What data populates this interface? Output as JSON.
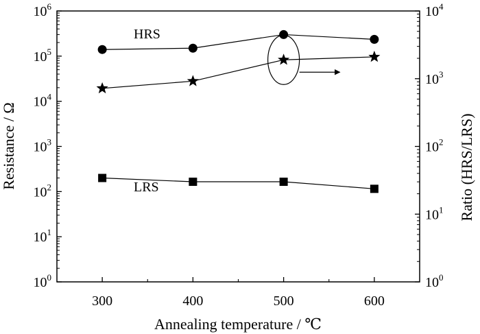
{
  "chart_data": {
    "type": "line",
    "x_label": "Annealing temperature / ℃",
    "y_label_left": "Resistance / Ω",
    "y_label_right": "Ratio (HRS/LRS)",
    "x_ticks": [
      300,
      400,
      500,
      600
    ],
    "x_range": [
      250,
      650
    ],
    "y_left_scale": "log",
    "y_left_range": [
      1,
      1000000
    ],
    "y_left_ticks": [
      "10^0",
      "10^1",
      "10^2",
      "10^3",
      "10^4",
      "10^5",
      "10^6"
    ],
    "y_right_scale": "log",
    "y_right_range": [
      1,
      10000
    ],
    "y_right_ticks": [
      "10^0",
      "10^1",
      "10^2",
      "10^3",
      "10^4"
    ],
    "grid": false,
    "series": [
      {
        "name": "HRS",
        "axis": "left",
        "marker": "circle",
        "x": [
          300,
          400,
          500,
          600
        ],
        "y": [
          140000,
          150000,
          300000,
          235000
        ]
      },
      {
        "name": "LRS",
        "axis": "left",
        "marker": "square",
        "x": [
          300,
          400,
          500,
          600
        ],
        "y": [
          200,
          165,
          165,
          115
        ]
      },
      {
        "axis": "right",
        "marker": "star",
        "x": [
          300,
          400,
          500,
          600
        ],
        "y": [
          720,
          920,
          1900,
          2100
        ]
      }
    ],
    "annotation": {
      "type": "ellipse-with-arrow",
      "target_series": 2,
      "target_x": 500,
      "arrow_direction": "right"
    }
  }
}
